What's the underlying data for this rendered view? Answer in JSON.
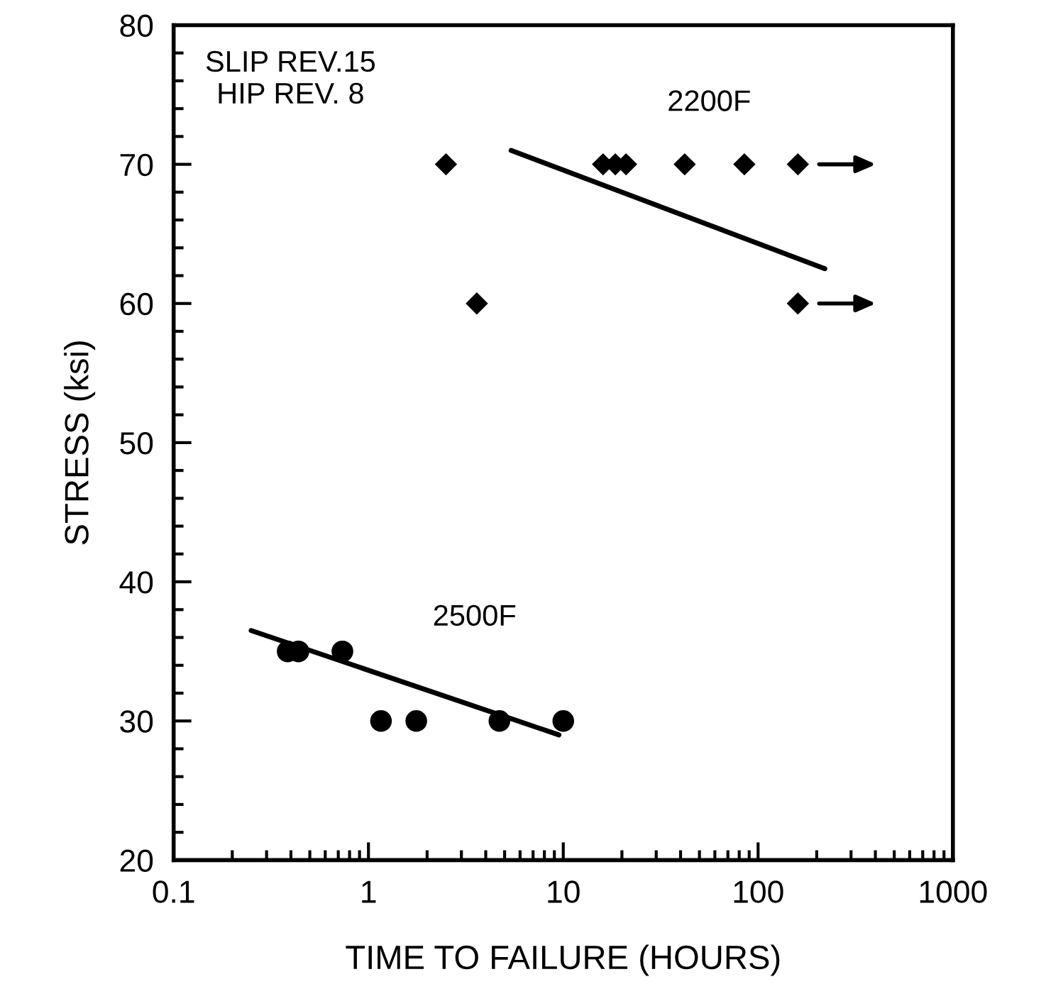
{
  "chart_data": {
    "type": "scatter",
    "xlabel": "TIME TO FAILURE (HOURS)",
    "ylabel": "STRESS (ksi)",
    "log": "x",
    "xlim": [
      0.1,
      1000
    ],
    "xticks": [
      0.1,
      1,
      10,
      100,
      1000
    ],
    "ylim": [
      20,
      80
    ],
    "yticks": [
      20,
      30,
      40,
      50,
      60,
      70,
      80
    ],
    "grid": false,
    "annotations": [
      "SLIP REV.15\nHIP REV. 8"
    ],
    "series": [
      {
        "name": "2200F",
        "marker": "diamond",
        "color": "#000000",
        "x": [
          2.5,
          16,
          18.5,
          21,
          42,
          85,
          160,
          3.6,
          160
        ],
        "values": [
          70,
          70,
          70,
          70,
          70,
          70,
          70,
          60,
          60
        ]
      },
      {
        "type": "line",
        "color": "#000000",
        "x": [
          5.4,
          220
        ],
        "values": [
          71,
          62.5
        ]
      },
      {
        "name": "2500F",
        "marker": "circle",
        "color": "#000000",
        "x": [
          0.385,
          0.437,
          0.735,
          1.16,
          1.76,
          4.7,
          10
        ],
        "values": [
          35,
          35,
          35,
          30,
          30,
          30,
          30
        ]
      },
      {
        "type": "line",
        "color": "#000000",
        "x": [
          0.25,
          9.5
        ],
        "values": [
          36.5,
          29
        ]
      }
    ]
  }
}
